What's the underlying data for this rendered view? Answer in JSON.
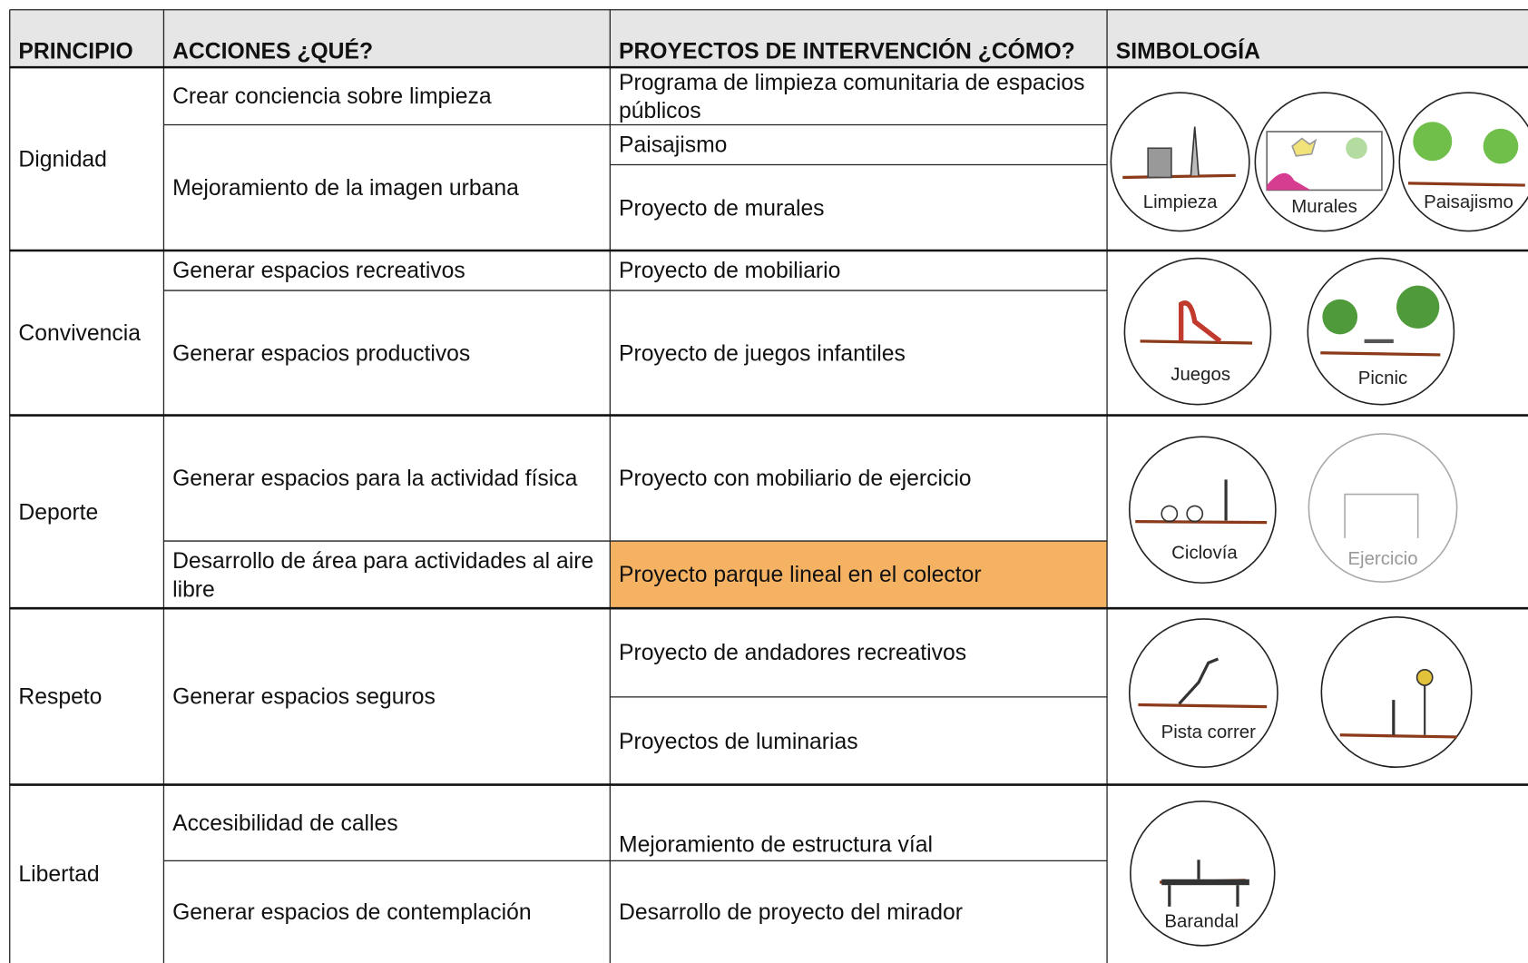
{
  "header": {
    "columns": [
      "PRINCIPIO",
      "ACCIONES ¿QUÉ?",
      "PROYECTOS DE INTERVENCIÓN ¿CÓMO?",
      "SIMBOLOGÍA"
    ]
  },
  "rows": [
    {
      "principio": "Dignidad",
      "acciones": [
        "Crear conciencia sobre limpieza",
        "Mejoramiento de la imagen urbana"
      ],
      "proyectos": [
        "Programa de limpieza comunitaria de espacios públicos",
        "Paisajismo",
        "Proyecto de murales"
      ],
      "simbolos": [
        "Limpieza",
        "Murales",
        "Paisajismo"
      ]
    },
    {
      "principio": "Convivencia",
      "acciones": [
        "Generar espacios recreativos",
        "Generar espacios productivos"
      ],
      "proyectos": [
        "Proyecto de mobiliario",
        "Proyecto de juegos infantiles"
      ],
      "simbolos": [
        "Juegos",
        "Picnic"
      ]
    },
    {
      "principio": "Deporte",
      "acciones": [
        "Generar espacios para la actividad física",
        "Desarrollo de área para actividades al aire libre"
      ],
      "proyectos": [
        "Proyecto con mobiliario de ejercicio",
        "Proyecto parque lineal en el colector"
      ],
      "simbolos": [
        "Ciclovía",
        "Ejercicio"
      ]
    },
    {
      "principio": "Respeto",
      "acciones": [
        "Generar espacios seguros"
      ],
      "proyectos": [
        "Proyecto de andadores recreativos",
        "Proyectos de luminarias"
      ],
      "simbolos": [
        "Pista correr"
      ]
    },
    {
      "principio": "Libertad",
      "acciones": [
        "Accesibilidad de calles",
        "Generar espacios de contemplación"
      ],
      "proyectos": [
        "Mejoramiento de estructura víal",
        "Desarrollo de proyecto del mirador"
      ],
      "simbolos": [
        "Barandal"
      ]
    }
  ]
}
